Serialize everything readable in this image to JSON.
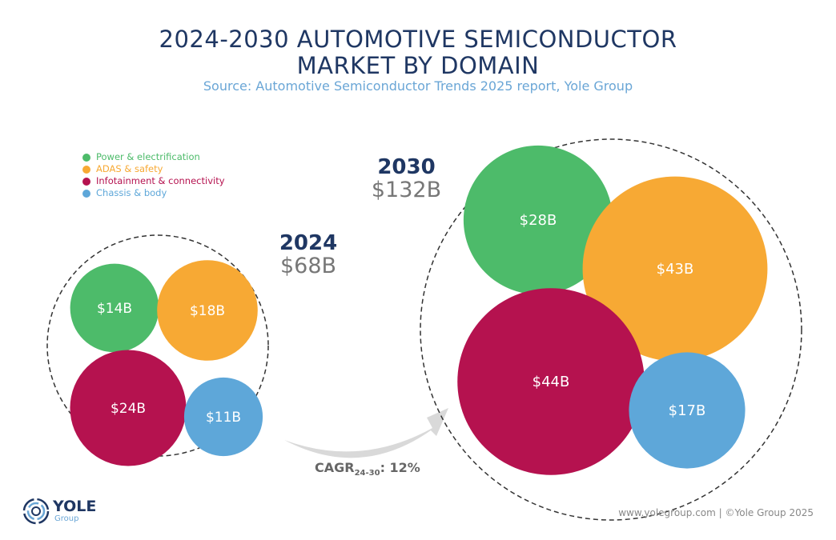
{
  "chart_data": {
    "type": "bubble",
    "title": "2024-2030 AUTOMOTIVE SEMICONDUCTOR MARKET BY DOMAIN",
    "subtitle": "Source: Automotive Semiconductor Trends 2025 report, Yole Group",
    "unit": "$B",
    "legend_placement": "top-left",
    "series": [
      {
        "name": "Power & electrification",
        "color": "#4dbb6a"
      },
      {
        "name": "ADAS & safety",
        "color": "#f7a934"
      },
      {
        "name": "Infotainment & connectivity",
        "color": "#b5124f"
      },
      {
        "name": "Chassis & body",
        "color": "#5ea7d9"
      }
    ],
    "groups": [
      {
        "year": "2024",
        "total_label": "$68B",
        "total": 68,
        "values": [
          14,
          18,
          24,
          11
        ],
        "labels": [
          "$14B",
          "$18B",
          "$24B",
          "$11B"
        ]
      },
      {
        "year": "2030",
        "total_label": "$132B",
        "total": 132,
        "values": [
          28,
          43,
          44,
          17
        ],
        "labels": [
          "$28B",
          "$43B",
          "$44B",
          "$17B"
        ]
      }
    ],
    "annotation": {
      "cagr_prefix": "CAGR",
      "cagr_sub": "24-30",
      "cagr_value": ": 12%"
    }
  },
  "footer": {
    "logo_text": "YOLE",
    "logo_sub": "Group",
    "credit": "www.yolegroup.com | ©Yole Group 2025"
  },
  "colors": {
    "title": "#1f3763",
    "subtitle": "#6aa6d6",
    "arrow": "#d9d9d9"
  }
}
